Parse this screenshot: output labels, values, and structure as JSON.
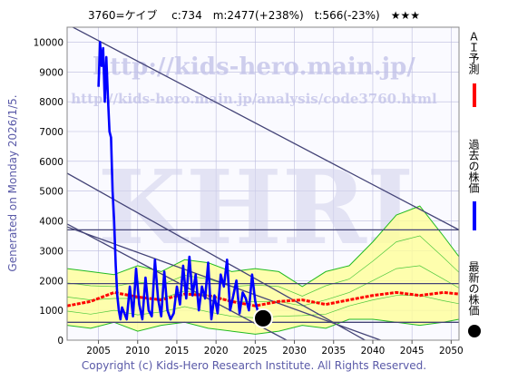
{
  "title": "3760=ケイブ　 c:734　m:2477(+238%)　t:566(-23%)　★★★",
  "side_note": "Generated on Monday 2026/1/5.",
  "copyright": "Copyright (c) Kids-Hero Research Institute. All Rights Reserved.",
  "watermark": {
    "url1": "http://kids-hero.main.jp/",
    "url2": "http://kids-hero.main.jp/analysis/code3760.html",
    "logo": "KHRI"
  },
  "colors": {
    "past": "#0000ff",
    "forecast": "#ff0000",
    "latest": "#000000",
    "band_fill": "#ffff99",
    "band_lines": "#22bb22",
    "trend_lines": "#444477",
    "grid": "#bbbbdd"
  },
  "chart_data": {
    "type": "line",
    "title": "3760=ケイブ　 c:734　m:2477(+238%)　t:566(-23%)　★★★",
    "xlabel": "",
    "ylabel": "",
    "xlim": [
      2001,
      2051
    ],
    "ylim": [
      0,
      10500
    ],
    "x_ticks": [
      2005,
      2010,
      2015,
      2020,
      2025,
      2030,
      2035,
      2040,
      2045,
      2050
    ],
    "y_ticks": [
      0,
      1000,
      2000,
      3000,
      4000,
      5000,
      6000,
      7000,
      8000,
      9000,
      10000
    ],
    "grid": true,
    "legend": [
      "ＡＩ予測",
      "過去の株価",
      "最新の株価"
    ],
    "series": [
      {
        "name": "過去の株価",
        "x": [
          2005.0,
          2005.2,
          2005.4,
          2005.6,
          2005.8,
          2006.0,
          2006.2,
          2006.4,
          2006.6,
          2006.8,
          2007.0,
          2007.2,
          2007.4,
          2007.6,
          2007.8,
          2008.0,
          2008.3,
          2008.6,
          2009.0,
          2009.4,
          2009.8,
          2010.2,
          2010.6,
          2011.0,
          2011.4,
          2011.8,
          2012.2,
          2012.6,
          2013.0,
          2013.4,
          2013.8,
          2014.2,
          2014.6,
          2015.0,
          2015.4,
          2015.8,
          2016.2,
          2016.6,
          2017.0,
          2017.4,
          2017.8,
          2018.2,
          2018.6,
          2019.0,
          2019.4,
          2019.8,
          2020.2,
          2020.6,
          2021.0,
          2021.4,
          2021.8,
          2022.2,
          2022.6,
          2023.0,
          2023.4,
          2023.8,
          2024.2,
          2024.6,
          2025.0,
          2025.4,
          2025.8,
          2026.0
        ],
        "values": [
          8500,
          10000,
          9200,
          9800,
          8000,
          9500,
          8200,
          7000,
          6800,
          5000,
          4000,
          2500,
          1500,
          1000,
          700,
          1100,
          900,
          700,
          1800,
          800,
          2400,
          1200,
          700,
          2100,
          1000,
          800,
          2700,
          1400,
          800,
          2300,
          1000,
          700,
          900,
          1800,
          1200,
          2500,
          1400,
          2800,
          1500,
          2200,
          1000,
          1800,
          1400,
          2600,
          700,
          1500,
          900,
          2200,
          1800,
          2700,
          1000,
          1500,
          2000,
          900,
          1600,
          1400,
          1000,
          2200,
          1300,
          900,
          1000,
          734
        ]
      },
      {
        "name": "ＡＩ予測",
        "x": [
          2001,
          2004,
          2007,
          2010,
          2013,
          2016,
          2019,
          2022,
          2025,
          2028,
          2031,
          2034,
          2037,
          2040,
          2043,
          2046,
          2049,
          2051
        ],
        "values": [
          1150,
          1300,
          1600,
          1450,
          1350,
          1550,
          1500,
          1300,
          1150,
          1300,
          1350,
          1200,
          1350,
          1500,
          1600,
          1500,
          1600,
          1550
        ]
      }
    ],
    "latest_point": {
      "x": 2026.0,
      "value": 734
    },
    "band": {
      "x": [
        2001,
        2004,
        2007,
        2010,
        2013,
        2016,
        2019,
        2022,
        2025,
        2028,
        2031,
        2034,
        2037,
        2040,
        2043,
        2046,
        2049,
        2051
      ],
      "upper": [
        2400,
        2300,
        2200,
        2500,
        2300,
        2700,
        2600,
        2300,
        2400,
        2300,
        1800,
        2300,
        2500,
        3300,
        4200,
        4500,
        3500,
        2800
      ],
      "lower": [
        500,
        400,
        600,
        300,
        500,
        600,
        400,
        300,
        200,
        300,
        500,
        400,
        700,
        700,
        600,
        500,
        600,
        700
      ]
    },
    "trend_lines": [
      {
        "x": [
          2001,
          2051
        ],
        "values": [
          10600,
          3700
        ]
      },
      {
        "x": [
          2001,
          2039
        ],
        "values": [
          5600,
          0
        ]
      },
      {
        "x": [
          2001,
          2029
        ],
        "values": [
          3900,
          0
        ]
      },
      {
        "x": [
          2001,
          2041
        ],
        "values": [
          3800,
          0
        ]
      },
      {
        "x": [
          2001,
          2051
        ],
        "values": [
          3700,
          3700
        ]
      },
      {
        "x": [
          2001,
          2051
        ],
        "values": [
          1900,
          1900
        ]
      },
      {
        "x": [
          2001,
          2051
        ],
        "values": [
          600,
          600
        ]
      }
    ]
  }
}
